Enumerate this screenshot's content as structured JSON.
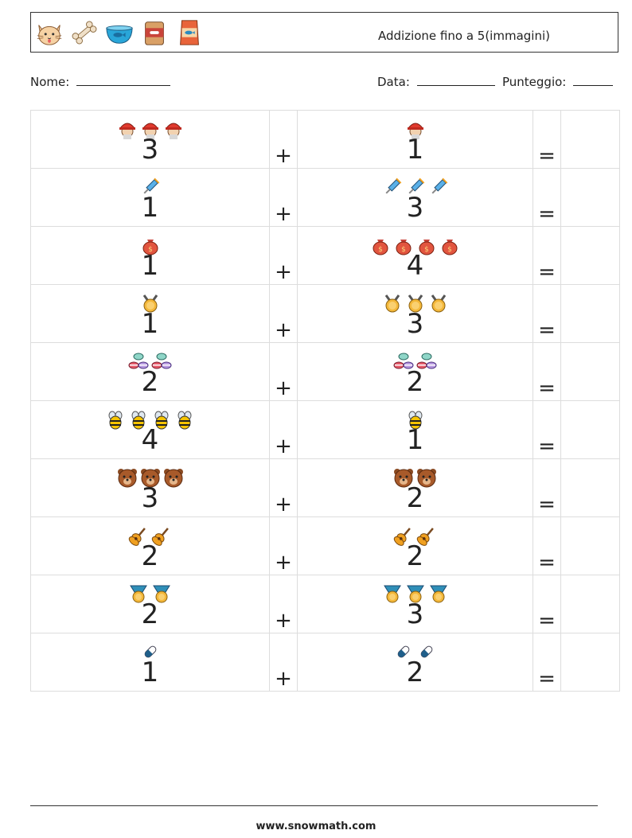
{
  "header": {
    "title": "Addizione fino a 5(immagini)",
    "icons": [
      "cat-face-icon",
      "bone-icon",
      "fish-bowl-icon",
      "canned-food-icon",
      "fish-food-bag-icon"
    ]
  },
  "meta": {
    "name_label": "Nome:",
    "date_label": "Data:",
    "score_label": "Punteggio:"
  },
  "problems": [
    {
      "a": 3,
      "a_icon": "firefighter-icon",
      "b": 1,
      "b_icon": "firefighter-icon"
    },
    {
      "a": 1,
      "a_icon": "syringe-icon",
      "b": 3,
      "b_icon": "syringe-icon"
    },
    {
      "a": 1,
      "a_icon": "money-bag-icon",
      "b": 4,
      "b_icon": "money-bag-icon"
    },
    {
      "a": 1,
      "a_icon": "gold-medal-icon",
      "b": 3,
      "b_icon": "gold-medal-icon"
    },
    {
      "a": 2,
      "a_icon": "macarons-icon",
      "b": 2,
      "b_icon": "macarons-icon"
    },
    {
      "a": 4,
      "a_icon": "bee-icon",
      "b": 1,
      "b_icon": "bee-icon"
    },
    {
      "a": 3,
      "a_icon": "bear-face-icon",
      "b": 2,
      "b_icon": "bear-face-icon"
    },
    {
      "a": 2,
      "a_icon": "guitar-icon",
      "b": 2,
      "b_icon": "guitar-icon"
    },
    {
      "a": 2,
      "a_icon": "medal-ribbon-icon",
      "b": 3,
      "b_icon": "medal-ribbon-icon"
    },
    {
      "a": 1,
      "a_icon": "capsule-icon",
      "b": 2,
      "b_icon": "capsule-icon"
    }
  ],
  "plus_sign": "+",
  "equals_sign": "=",
  "footer": {
    "url": "www.snowmath.com"
  }
}
